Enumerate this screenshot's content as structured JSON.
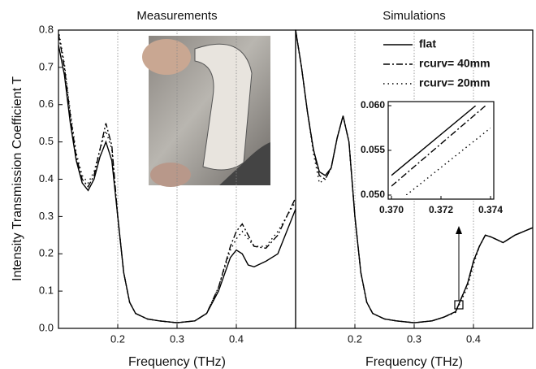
{
  "chart_data": [
    {
      "type": "line",
      "title": "Measurements",
      "xlabel": "Frequency (THz)",
      "ylabel": "Intensity Transmission Coefficient T",
      "x": [
        0.1,
        0.11,
        0.12,
        0.13,
        0.14,
        0.15,
        0.16,
        0.17,
        0.18,
        0.19,
        0.2,
        0.21,
        0.22,
        0.23,
        0.25,
        0.27,
        0.3,
        0.33,
        0.35,
        0.37,
        0.39,
        0.4,
        0.41,
        0.42,
        0.43,
        0.45,
        0.47,
        0.5
      ],
      "series": [
        {
          "color": "#000000",
          "linestyle": "solid",
          "values": [
            0.76,
            0.68,
            0.55,
            0.45,
            0.39,
            0.37,
            0.4,
            0.46,
            0.5,
            0.45,
            0.3,
            0.15,
            0.07,
            0.04,
            0.025,
            0.02,
            0.015,
            0.02,
            0.04,
            0.1,
            0.19,
            0.21,
            0.2,
            0.17,
            0.165,
            0.18,
            0.2,
            0.32
          ]
        },
        {
          "color": "#000000",
          "linestyle": "dashdot",
          "values": [
            0.79,
            0.7,
            0.57,
            0.46,
            0.4,
            0.38,
            0.41,
            0.48,
            0.55,
            0.49,
            0.3,
            0.15,
            0.07,
            0.04,
            0.025,
            0.02,
            0.015,
            0.02,
            0.04,
            0.11,
            0.22,
            0.26,
            0.28,
            0.25,
            0.22,
            0.215,
            0.25,
            0.35
          ]
        },
        {
          "color": "#000000",
          "linestyle": "dotted",
          "values": [
            0.8,
            0.71,
            0.58,
            0.47,
            0.41,
            0.39,
            0.42,
            0.48,
            0.53,
            0.48,
            0.3,
            0.15,
            0.07,
            0.04,
            0.025,
            0.02,
            0.015,
            0.02,
            0.04,
            0.11,
            0.21,
            0.24,
            0.26,
            0.24,
            0.22,
            0.22,
            0.26,
            0.34
          ]
        }
      ],
      "xlim": [
        0.1,
        0.5
      ],
      "xticks": [
        0.2,
        0.3,
        0.4
      ],
      "ylim": [
        0,
        0.8
      ],
      "yticks": [
        {
          "value": 0,
          "label": "0.0"
        },
        0.1,
        0.2,
        0.3,
        0.4,
        0.5,
        0.6,
        0.7,
        0.8
      ],
      "grid": "x"
    },
    {
      "type": "line",
      "title": "Simulations",
      "xlabel": "Frequency (THz)",
      "x": [
        0.1,
        0.11,
        0.12,
        0.13,
        0.14,
        0.15,
        0.16,
        0.17,
        0.18,
        0.19,
        0.2,
        0.21,
        0.22,
        0.23,
        0.25,
        0.27,
        0.3,
        0.33,
        0.35,
        0.37,
        0.39,
        0.4,
        0.41,
        0.42,
        0.43,
        0.45,
        0.47,
        0.5
      ],
      "series": [
        {
          "name": "flat",
          "color": "#000000",
          "linestyle": "solid",
          "values": [
            0.8,
            0.7,
            0.58,
            0.48,
            0.42,
            0.41,
            0.43,
            0.51,
            0.57,
            0.5,
            0.3,
            0.15,
            0.07,
            0.04,
            0.025,
            0.02,
            0.015,
            0.02,
            0.03,
            0.045,
            0.12,
            0.18,
            0.22,
            0.25,
            0.245,
            0.23,
            0.25,
            0.27
          ]
        },
        {
          "name": "rcurv= 40mm",
          "color": "#000000",
          "linestyle": "dashdot",
          "values": [
            0.8,
            0.7,
            0.58,
            0.48,
            0.41,
            0.4,
            0.43,
            0.51,
            0.57,
            0.5,
            0.3,
            0.15,
            0.07,
            0.04,
            0.025,
            0.02,
            0.015,
            0.02,
            0.03,
            0.045,
            0.12,
            0.18,
            0.22,
            0.25,
            0.245,
            0.23,
            0.25,
            0.27
          ]
        },
        {
          "name": "rcurv= 20mm",
          "color": "#000000",
          "linestyle": "dotted",
          "values": [
            0.8,
            0.7,
            0.58,
            0.47,
            0.39,
            0.4,
            0.43,
            0.51,
            0.57,
            0.5,
            0.3,
            0.15,
            0.07,
            0.04,
            0.025,
            0.02,
            0.015,
            0.02,
            0.03,
            0.043,
            0.11,
            0.17,
            0.22,
            0.25,
            0.245,
            0.23,
            0.25,
            0.27
          ]
        }
      ],
      "xlim": [
        0.1,
        0.5
      ],
      "xticks": [
        0.2,
        0.3,
        0.4
      ],
      "ylim": [
        0,
        0.8
      ],
      "grid": "x",
      "legend": "upper right"
    },
    {
      "type": "line",
      "series": [
        {
          "color": "#000000",
          "linestyle": "solid",
          "x": [
            0.37,
            0.3734
          ],
          "values": [
            0.0522,
            0.06
          ]
        },
        {
          "color": "#000000",
          "linestyle": "dashdot",
          "x": [
            0.37,
            0.3738
          ],
          "values": [
            0.051,
            0.06
          ]
        },
        {
          "color": "#000000",
          "linestyle": "dotted",
          "x": [
            0.3706,
            0.374
          ],
          "values": [
            0.05,
            0.0575
          ]
        }
      ],
      "xlim": [
        0.37,
        0.374
      ],
      "xticks": [
        {
          "value": 0.37,
          "label": "0.370"
        },
        {
          "value": 0.372,
          "label": "0.372"
        },
        {
          "value": 0.374,
          "label": "0.374"
        }
      ],
      "ylim": [
        0.05,
        0.06
      ],
      "yticks": [
        {
          "value": 0.05,
          "label": "0.050"
        },
        {
          "value": 0.055,
          "label": "0.055"
        },
        {
          "value": 0.06,
          "label": "0.060"
        }
      ]
    }
  ]
}
